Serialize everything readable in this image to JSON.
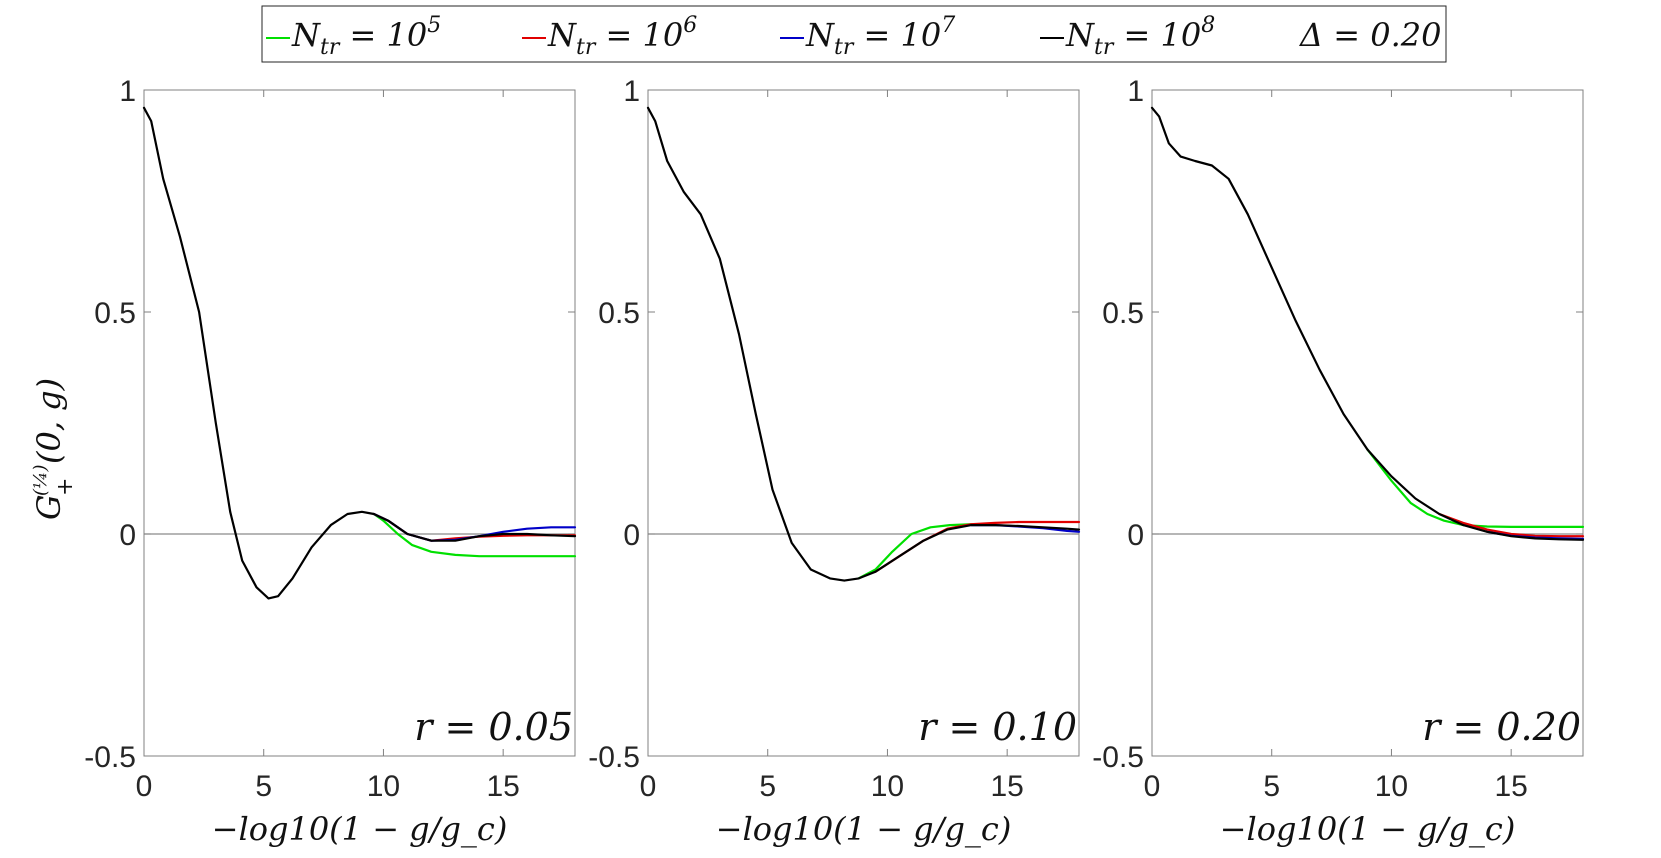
{
  "legend": {
    "entries": [
      {
        "label": "N_tr = 10^5",
        "color": "#00e000"
      },
      {
        "label": "N_tr = 10^6",
        "color": "#e00000"
      },
      {
        "label": "N_tr = 10^7",
        "color": "#0000c8"
      },
      {
        "label": "N_tr = 10^8",
        "color": "#000000"
      }
    ],
    "extra": "Δ = 0.20"
  },
  "ylabel": "G_+^(1/4)(0, g)",
  "xlabel": "−log10(1 − g/g_c)",
  "chart_data": [
    {
      "type": "line",
      "annotation": "r = 0.05",
      "xlim": [
        0,
        18
      ],
      "ylim": [
        -0.5,
        1
      ],
      "xticks": [
        0,
        5,
        10,
        15
      ],
      "yticks": [
        -0.5,
        0,
        0.5,
        1
      ],
      "ytick_labels": [
        "-0.5",
        "0",
        "0.5",
        "1"
      ],
      "zero_line": true,
      "series": [
        {
          "name": "N_tr = 10^8",
          "color": "#000000",
          "x": [
            0,
            0.3,
            0.8,
            1.5,
            2.3,
            3.0,
            3.6,
            4.1,
            4.7,
            5.2,
            5.6,
            6.2,
            7.0,
            7.8,
            8.5,
            9.1,
            9.6,
            10.2,
            11.0,
            12.0,
            13.0,
            14.0,
            15.0,
            16.0,
            17.0,
            18.0
          ],
          "y": [
            0.96,
            0.93,
            0.8,
            0.67,
            0.5,
            0.25,
            0.05,
            -0.06,
            -0.12,
            -0.145,
            -0.14,
            -0.1,
            -0.03,
            0.02,
            0.045,
            0.05,
            0.045,
            0.03,
            0.0,
            -0.015,
            -0.015,
            -0.005,
            0.0,
            0.0,
            -0.003,
            -0.005
          ]
        },
        {
          "name": "N_tr = 10^7",
          "color": "#0000c8",
          "x": [
            9.6,
            10.2,
            11.0,
            12.0,
            13.0,
            14.0,
            15.0,
            16.0,
            17.0,
            18.0
          ],
          "y": [
            0.045,
            0.03,
            0.0,
            -0.015,
            -0.013,
            -0.005,
            0.005,
            0.012,
            0.015,
            0.015
          ]
        },
        {
          "name": "N_tr = 10^6",
          "color": "#e00000",
          "x": [
            9.6,
            10.2,
            11.0,
            12.0,
            13.0,
            14.0,
            15.0,
            16.0,
            17.0,
            18.0
          ],
          "y": [
            0.045,
            0.03,
            0.0,
            -0.015,
            -0.01,
            -0.006,
            -0.004,
            -0.003,
            -0.003,
            -0.003
          ]
        },
        {
          "name": "N_tr = 10^5",
          "color": "#00e000",
          "x": [
            9.6,
            10.0,
            10.6,
            11.2,
            12.0,
            13.0,
            14.0,
            15.0,
            16.0,
            17.0,
            18.0
          ],
          "y": [
            0.045,
            0.03,
            0.0,
            -0.025,
            -0.04,
            -0.047,
            -0.05,
            -0.05,
            -0.05,
            -0.05,
            -0.05
          ]
        }
      ]
    },
    {
      "type": "line",
      "annotation": "r = 0.10",
      "xlim": [
        0,
        18
      ],
      "ylim": [
        -0.5,
        1
      ],
      "xticks": [
        0,
        5,
        10,
        15
      ],
      "yticks": [
        -0.5,
        0,
        0.5,
        1
      ],
      "ytick_labels": [
        "-0.5",
        "0",
        "0.5",
        "1"
      ],
      "zero_line": true,
      "series": [
        {
          "name": "N_tr = 10^8",
          "color": "#000000",
          "x": [
            0,
            0.3,
            0.8,
            1.5,
            2.2,
            3.0,
            3.8,
            4.5,
            5.2,
            6.0,
            6.8,
            7.6,
            8.2,
            8.8,
            9.5,
            10.5,
            11.5,
            12.5,
            13.5,
            14.5,
            15.5,
            16.5,
            17.5,
            18.0
          ],
          "y": [
            0.96,
            0.93,
            0.84,
            0.77,
            0.72,
            0.62,
            0.45,
            0.27,
            0.1,
            -0.02,
            -0.08,
            -0.1,
            -0.105,
            -0.1,
            -0.085,
            -0.05,
            -0.015,
            0.01,
            0.02,
            0.02,
            0.018,
            0.015,
            0.012,
            0.01
          ]
        },
        {
          "name": "N_tr = 10^7",
          "color": "#0000c8",
          "x": [
            13.5,
            14.5,
            15.5,
            16.5,
            17.5,
            18.0
          ],
          "y": [
            0.02,
            0.02,
            0.017,
            0.013,
            0.007,
            0.005
          ]
        },
        {
          "name": "N_tr = 10^6",
          "color": "#e00000",
          "x": [
            9.5,
            10.5,
            11.5,
            12.5,
            13.5,
            14.5,
            15.5,
            16.5,
            17.5,
            18.0
          ],
          "y": [
            -0.085,
            -0.05,
            -0.015,
            0.012,
            0.022,
            0.025,
            0.027,
            0.027,
            0.027,
            0.027
          ]
        },
        {
          "name": "N_tr = 10^5",
          "color": "#00e000",
          "x": [
            8.8,
            9.5,
            10.2,
            11.0,
            11.8,
            12.6,
            13.5,
            14.5
          ],
          "y": [
            -0.1,
            -0.08,
            -0.04,
            0.0,
            0.015,
            0.02,
            0.022,
            0.02
          ]
        }
      ]
    },
    {
      "type": "line",
      "annotation": "r = 0.20",
      "xlim": [
        0,
        18
      ],
      "ylim": [
        -0.5,
        1
      ],
      "xticks": [
        0,
        5,
        10,
        15
      ],
      "yticks": [
        -0.5,
        0,
        0.5,
        1
      ],
      "ytick_labels": [
        "-0.5",
        "0",
        "0.5",
        "1"
      ],
      "zero_line": true,
      "series": [
        {
          "name": "N_tr = 10^8",
          "color": "#000000",
          "x": [
            0,
            0.3,
            0.7,
            1.2,
            1.8,
            2.5,
            3.2,
            4.0,
            5.0,
            6.0,
            7.0,
            8.0,
            9.0,
            10.0,
            11.0,
            12.0,
            13.0,
            14.0,
            15.0,
            16.0,
            17.0,
            18.0
          ],
          "y": [
            0.96,
            0.94,
            0.88,
            0.85,
            0.84,
            0.83,
            0.8,
            0.72,
            0.6,
            0.48,
            0.37,
            0.27,
            0.19,
            0.13,
            0.08,
            0.045,
            0.02,
            0.005,
            -0.005,
            -0.01,
            -0.012,
            -0.013
          ]
        },
        {
          "name": "N_tr = 10^7",
          "color": "#0000c8",
          "x": [
            14.0,
            15.0,
            16.0,
            17.0,
            18.0
          ],
          "y": [
            0.005,
            -0.004,
            -0.008,
            -0.01,
            -0.011
          ]
        },
        {
          "name": "N_tr = 10^6",
          "color": "#e00000",
          "x": [
            12.0,
            13.0,
            14.0,
            15.0,
            16.0,
            17.0,
            18.0
          ],
          "y": [
            0.045,
            0.025,
            0.01,
            0.0,
            -0.004,
            -0.005,
            -0.005
          ]
        },
        {
          "name": "N_tr = 10^5",
          "color": "#00e000",
          "x": [
            9.0,
            10.0,
            10.8,
            11.5,
            12.2,
            13.0,
            14.0,
            15.0,
            16.0,
            17.0,
            18.0
          ],
          "y": [
            0.19,
            0.12,
            0.07,
            0.045,
            0.03,
            0.02,
            0.017,
            0.016,
            0.016,
            0.016,
            0.016
          ]
        }
      ]
    }
  ]
}
